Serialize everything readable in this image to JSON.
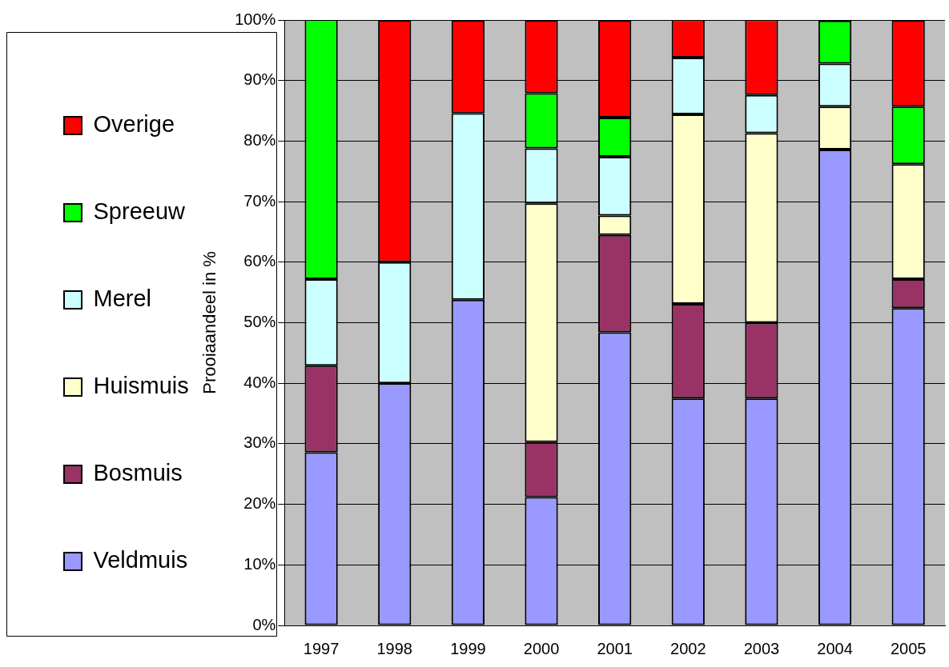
{
  "chart_data": {
    "type": "bar",
    "stacked": true,
    "ylabel": "Prooiaandeel in %",
    "categories": [
      "1997",
      "1998",
      "1999",
      "2000",
      "2001",
      "2002",
      "2003",
      "2004",
      "2005"
    ],
    "series": [
      {
        "name": "Veldmuis",
        "color": "#9999ff",
        "values": [
          28.6,
          40,
          53.8,
          21.2,
          48.4,
          37.5,
          37.5,
          78.6,
          52.4
        ]
      },
      {
        "name": "Bosmuis",
        "color": "#993366",
        "values": [
          14.3,
          0,
          0,
          9.1,
          16.1,
          15.6,
          12.5,
          0,
          4.8
        ]
      },
      {
        "name": "Huismuis",
        "color": "#ffffcc",
        "values": [
          0,
          0,
          0,
          39.4,
          3.2,
          31.3,
          31.3,
          7.1,
          19
        ]
      },
      {
        "name": "Merel",
        "color": "#ccffff",
        "values": [
          14.3,
          20,
          30.8,
          9.1,
          9.7,
          9.4,
          6.3,
          7.1,
          0
        ]
      },
      {
        "name": "Spreeuw",
        "color": "#00ff00",
        "values": [
          42.9,
          0,
          0,
          9.1,
          6.5,
          0,
          0,
          7.1,
          9.5
        ]
      },
      {
        "name": "Overige",
        "color": "#ff0000",
        "values": [
          0,
          40,
          15.4,
          12.1,
          16.1,
          6.3,
          12.5,
          0,
          14.3
        ]
      }
    ],
    "ylim": [
      0,
      100
    ],
    "yticks": [
      {
        "value": 0,
        "label": "0%"
      },
      {
        "value": 10,
        "label": "10%"
      },
      {
        "value": 20,
        "label": "20%"
      },
      {
        "value": 30,
        "label": "30%"
      },
      {
        "value": 40,
        "label": "40%"
      },
      {
        "value": 50,
        "label": "50%"
      },
      {
        "value": 60,
        "label": "60%"
      },
      {
        "value": 70,
        "label": "70%"
      },
      {
        "value": 80,
        "label": "80%"
      },
      {
        "value": 90,
        "label": "90%"
      },
      {
        "value": 100,
        "label": "100%"
      }
    ],
    "grid": "y",
    "legend": "left"
  }
}
